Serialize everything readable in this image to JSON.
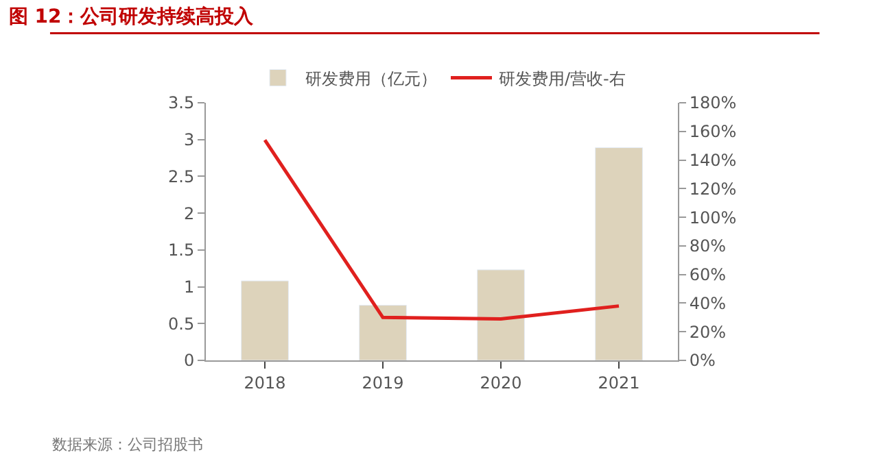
{
  "chart_data": {
    "type": "bar",
    "title": "图 12：公司研发持续高投入",
    "categories": [
      "2018",
      "2019",
      "2020",
      "2021"
    ],
    "series": [
      {
        "name": "研发费用（亿元）",
        "color": "#ddd3bb",
        "values": [
          1.08,
          0.75,
          1.23,
          2.89
        ]
      },
      {
        "name": "研发费用/营收-右",
        "type": "line",
        "axis": "y2",
        "color": "#e0201e",
        "values": [
          154,
          30,
          29,
          38
        ]
      }
    ],
    "ylim": [
      0,
      3.5
    ],
    "yticks": [
      0,
      0.5,
      1,
      1.5,
      2,
      2.5,
      3,
      3.5
    ],
    "y2lim": [
      0,
      180
    ],
    "y2ticks": [
      {
        "value": 0,
        "label": "0%"
      },
      {
        "value": 20,
        "label": "20%"
      },
      {
        "value": 40,
        "label": "40%"
      },
      {
        "value": 60,
        "label": "60%"
      },
      {
        "value": 80,
        "label": "80%"
      },
      {
        "value": 100,
        "label": "100%"
      },
      {
        "value": 120,
        "label": "120%"
      },
      {
        "value": 140,
        "label": "140%"
      },
      {
        "value": 160,
        "label": "160%"
      },
      {
        "value": 180,
        "label": "180%"
      }
    ],
    "legend": "top",
    "marker": "none",
    "line_style": "solid",
    "annotations": [
      "数据来源：公司招股书"
    ]
  }
}
